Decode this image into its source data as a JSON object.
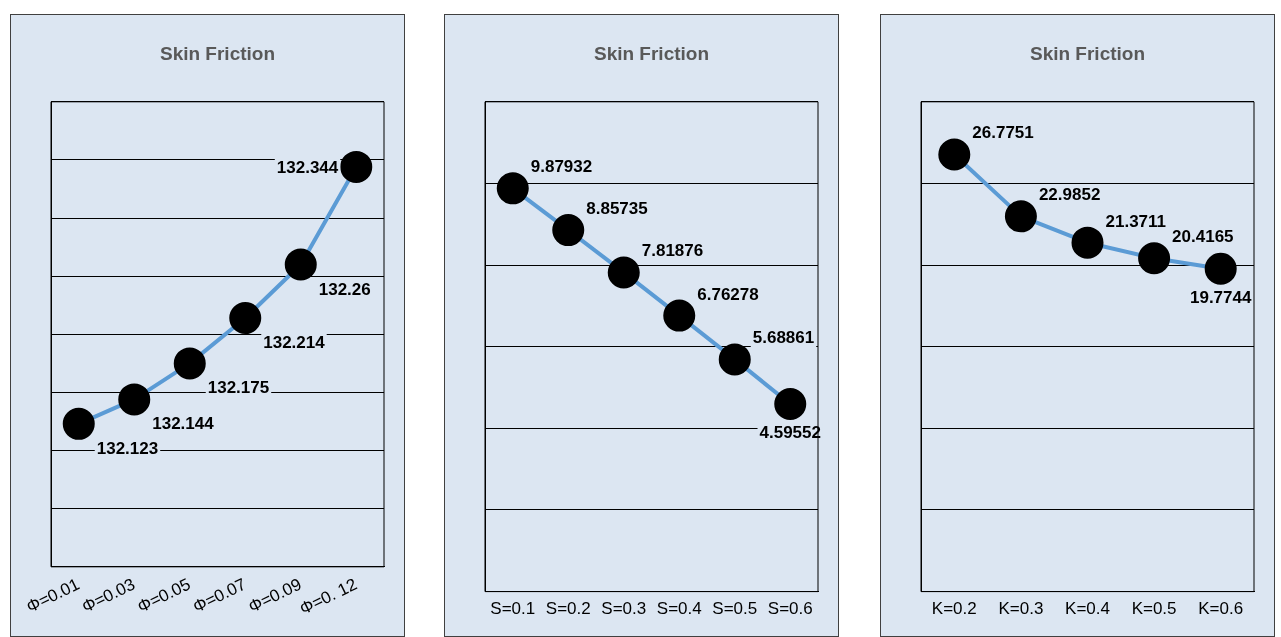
{
  "chart_data": [
    {
      "type": "line",
      "title": "Skin Friction",
      "categories": [
        "Φ=0.01",
        "Φ=0.03",
        "Φ=0.05",
        "Φ=0.07",
        "Φ=0.09",
        "Φ=0. 12"
      ],
      "series": [
        {
          "color": "#5b9bd5",
          "values": [
            132.123,
            132.144,
            132.175,
            132.214,
            132.26,
            132.344
          ]
        }
      ],
      "ylim": [
        132,
        132.4
      ],
      "yticks": [
        {
          "value": 132,
          "label": null
        },
        {
          "value": 132.05,
          "label": null
        },
        {
          "value": 132.1,
          "label": null
        },
        {
          "value": 132.15,
          "label": null
        },
        {
          "value": 132.2,
          "label": null
        },
        {
          "value": 132.25,
          "label": null
        },
        {
          "value": 132.3,
          "label": null
        },
        {
          "value": 132.35,
          "label": null
        },
        {
          "value": 132.4,
          "label": null
        }
      ],
      "grid": "y",
      "tick_labels": "x",
      "marker": "circle",
      "data_labels": true,
      "legend": false
    },
    {
      "type": "line",
      "title": "Skin Friction",
      "categories": [
        "S=0.1",
        "S=0.2",
        "S=0.3",
        "S=0.4",
        "S=0.5",
        "S=0.6"
      ],
      "series": [
        {
          "color": "#5b9bd5",
          "values": [
            9.87932,
            8.85735,
            7.81876,
            6.76278,
            5.68861,
            4.59552
          ]
        }
      ],
      "ylim": [
        0,
        12
      ],
      "yticks": [
        {
          "value": 0,
          "label": null
        },
        {
          "value": 2,
          "label": null
        },
        {
          "value": 4,
          "label": null
        },
        {
          "value": 6,
          "label": null
        },
        {
          "value": 8,
          "label": null
        },
        {
          "value": 10,
          "label": null
        },
        {
          "value": 12,
          "label": null
        }
      ],
      "grid": "y",
      "tick_labels": "x",
      "marker": "circle",
      "data_labels": true,
      "legend": false
    },
    {
      "type": "line",
      "title": "Skin Friction",
      "categories": [
        "K=0.2",
        "K=0.3",
        "K=0.4",
        "K=0.5",
        "K=0.6"
      ],
      "series": [
        {
          "color": "#5b9bd5",
          "values": [
            26.7751,
            22.9852,
            21.3711,
            20.4165,
            19.7744
          ]
        }
      ],
      "ylim": [
        0,
        30
      ],
      "yticks": [
        {
          "value": 0,
          "label": null
        },
        {
          "value": 5,
          "label": null
        },
        {
          "value": 10,
          "label": null
        },
        {
          "value": 15,
          "label": null
        },
        {
          "value": 20,
          "label": null
        },
        {
          "value": 25,
          "label": null
        },
        {
          "value": 30,
          "label": null
        }
      ],
      "grid": "y",
      "tick_labels": "x",
      "marker": "circle",
      "data_labels": true,
      "legend": false
    }
  ]
}
